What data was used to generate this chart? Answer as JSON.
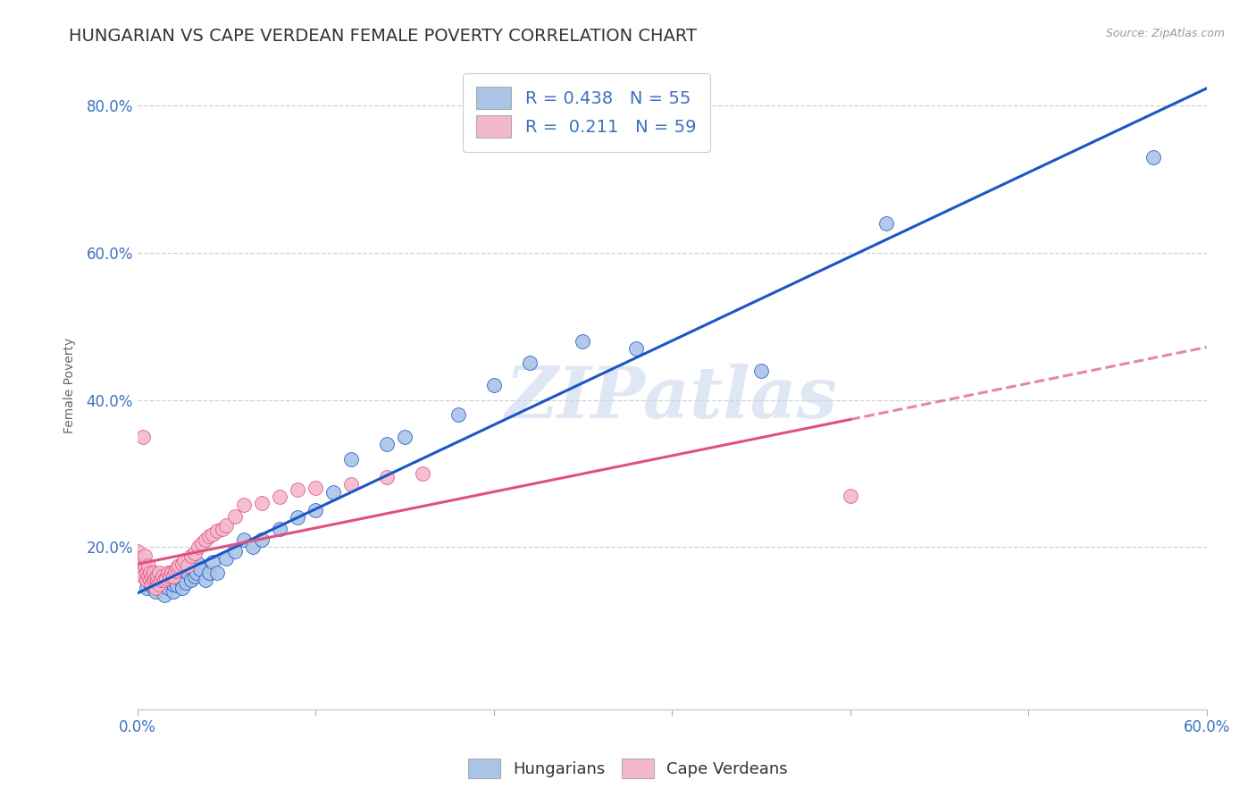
{
  "title": "HUNGARIAN VS CAPE VERDEAN FEMALE POVERTY CORRELATION CHART",
  "source": "Source: ZipAtlas.com",
  "ylabel": "Female Poverty",
  "xlim": [
    0.0,
    0.6
  ],
  "ylim": [
    -0.02,
    0.86
  ],
  "xtick_vals": [
    0.0,
    0.1,
    0.2,
    0.3,
    0.4,
    0.5,
    0.6
  ],
  "xtick_labels": [
    "0.0%",
    "",
    "",
    "",
    "",
    "",
    "60.0%"
  ],
  "ytick_vals": [
    0.2,
    0.4,
    0.6,
    0.8
  ],
  "ytick_labels": [
    "20.0%",
    "40.0%",
    "60.0%",
    "80.0%"
  ],
  "hungarian_color": "#aac4e8",
  "cape_verdean_color": "#f4b8cc",
  "trend_hungarian_color": "#1a56c4",
  "trend_cape_verdean_color": "#e05080",
  "R_hungarian": 0.438,
  "N_hungarian": 55,
  "R_cape_verdean": 0.211,
  "N_cape_verdean": 59,
  "watermark_text": "ZIPatlas",
  "background_color": "#ffffff",
  "grid_color": "#d0d0d0",
  "legend_label_hungarian": "Hungarians",
  "legend_label_cape_verdean": "Cape Verdeans",
  "title_fontsize": 14,
  "axis_label_fontsize": 10,
  "tick_fontsize": 12,
  "tick_color": "#3a72c0",
  "hungarian_x": [
    0.005,
    0.005,
    0.005,
    0.007,
    0.008,
    0.01,
    0.01,
    0.01,
    0.01,
    0.012,
    0.014,
    0.015,
    0.015,
    0.017,
    0.018,
    0.019,
    0.02,
    0.02,
    0.021,
    0.022,
    0.022,
    0.024,
    0.025,
    0.026,
    0.027,
    0.028,
    0.03,
    0.032,
    0.033,
    0.034,
    0.035,
    0.038,
    0.04,
    0.042,
    0.045,
    0.05,
    0.055,
    0.06,
    0.065,
    0.07,
    0.08,
    0.09,
    0.1,
    0.11,
    0.12,
    0.14,
    0.15,
    0.18,
    0.2,
    0.22,
    0.25,
    0.28,
    0.35,
    0.42,
    0.57
  ],
  "hungarian_y": [
    0.155,
    0.145,
    0.165,
    0.15,
    0.16,
    0.14,
    0.148,
    0.155,
    0.162,
    0.145,
    0.15,
    0.135,
    0.155,
    0.145,
    0.165,
    0.155,
    0.14,
    0.15,
    0.16,
    0.148,
    0.162,
    0.155,
    0.145,
    0.17,
    0.152,
    0.165,
    0.155,
    0.16,
    0.165,
    0.178,
    0.17,
    0.155,
    0.165,
    0.18,
    0.165,
    0.185,
    0.195,
    0.21,
    0.2,
    0.21,
    0.225,
    0.24,
    0.25,
    0.275,
    0.32,
    0.34,
    0.35,
    0.38,
    0.42,
    0.45,
    0.48,
    0.47,
    0.44,
    0.64,
    0.73
  ],
  "cape_verdean_x": [
    0.0,
    0.0,
    0.001,
    0.001,
    0.002,
    0.003,
    0.003,
    0.004,
    0.004,
    0.005,
    0.005,
    0.006,
    0.006,
    0.007,
    0.007,
    0.008,
    0.008,
    0.009,
    0.009,
    0.01,
    0.01,
    0.011,
    0.011,
    0.012,
    0.012,
    0.013,
    0.014,
    0.015,
    0.016,
    0.017,
    0.018,
    0.019,
    0.02,
    0.021,
    0.022,
    0.023,
    0.025,
    0.026,
    0.028,
    0.03,
    0.032,
    0.034,
    0.036,
    0.038,
    0.04,
    0.042,
    0.045,
    0.048,
    0.05,
    0.055,
    0.06,
    0.07,
    0.08,
    0.09,
    0.1,
    0.12,
    0.14,
    0.16,
    0.4
  ],
  "cape_verdean_y": [
    0.175,
    0.195,
    0.17,
    0.185,
    0.165,
    0.35,
    0.16,
    0.175,
    0.188,
    0.155,
    0.165,
    0.16,
    0.175,
    0.155,
    0.165,
    0.15,
    0.16,
    0.155,
    0.165,
    0.145,
    0.158,
    0.155,
    0.162,
    0.15,
    0.165,
    0.155,
    0.16,
    0.155,
    0.158,
    0.165,
    0.16,
    0.165,
    0.16,
    0.168,
    0.172,
    0.175,
    0.178,
    0.182,
    0.175,
    0.188,
    0.192,
    0.2,
    0.205,
    0.21,
    0.215,
    0.218,
    0.222,
    0.225,
    0.23,
    0.242,
    0.258,
    0.26,
    0.268,
    0.278,
    0.28,
    0.285,
    0.295,
    0.3,
    0.27
  ]
}
